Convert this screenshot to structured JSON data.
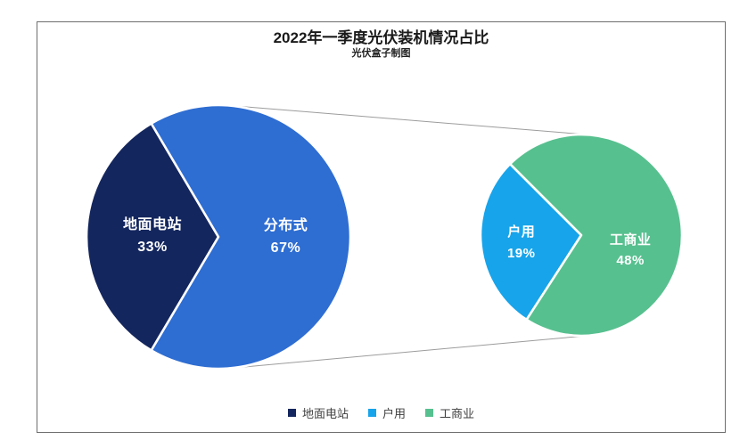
{
  "chart_data": {
    "type": "pie",
    "variant": "pie-of-pie",
    "title": "2022年一季度光伏装机情况占比",
    "subtitle": "光伏盒子制图",
    "pies": [
      {
        "id": "total",
        "slices": [
          {
            "label": "地面电站",
            "value": 33,
            "value_label": "33%",
            "color": "#14265E"
          },
          {
            "label": "分布式",
            "value": 67,
            "value_label": "67%",
            "color": "#2E6DD2"
          }
        ]
      },
      {
        "id": "breakdown",
        "slices": [
          {
            "label": "户用",
            "value": 19,
            "value_label": "19%",
            "color": "#17A4EA"
          },
          {
            "label": "工商业",
            "value": 48,
            "value_label": "48%",
            "color": "#57C08F"
          }
        ]
      }
    ],
    "legend": {
      "position": "bottom",
      "items": [
        {
          "label": "地面电站",
          "color": "#14265E"
        },
        {
          "label": "户用",
          "color": "#17A4EA"
        },
        {
          "label": "工商业",
          "color": "#57C08F"
        }
      ]
    },
    "colors": {
      "connector_line": "#9C9C9C",
      "frame_border": "#6E6E6E",
      "slice_label_text": "#FFFFFF",
      "legend_text": "#404040",
      "background": "#FFFFFF"
    }
  }
}
